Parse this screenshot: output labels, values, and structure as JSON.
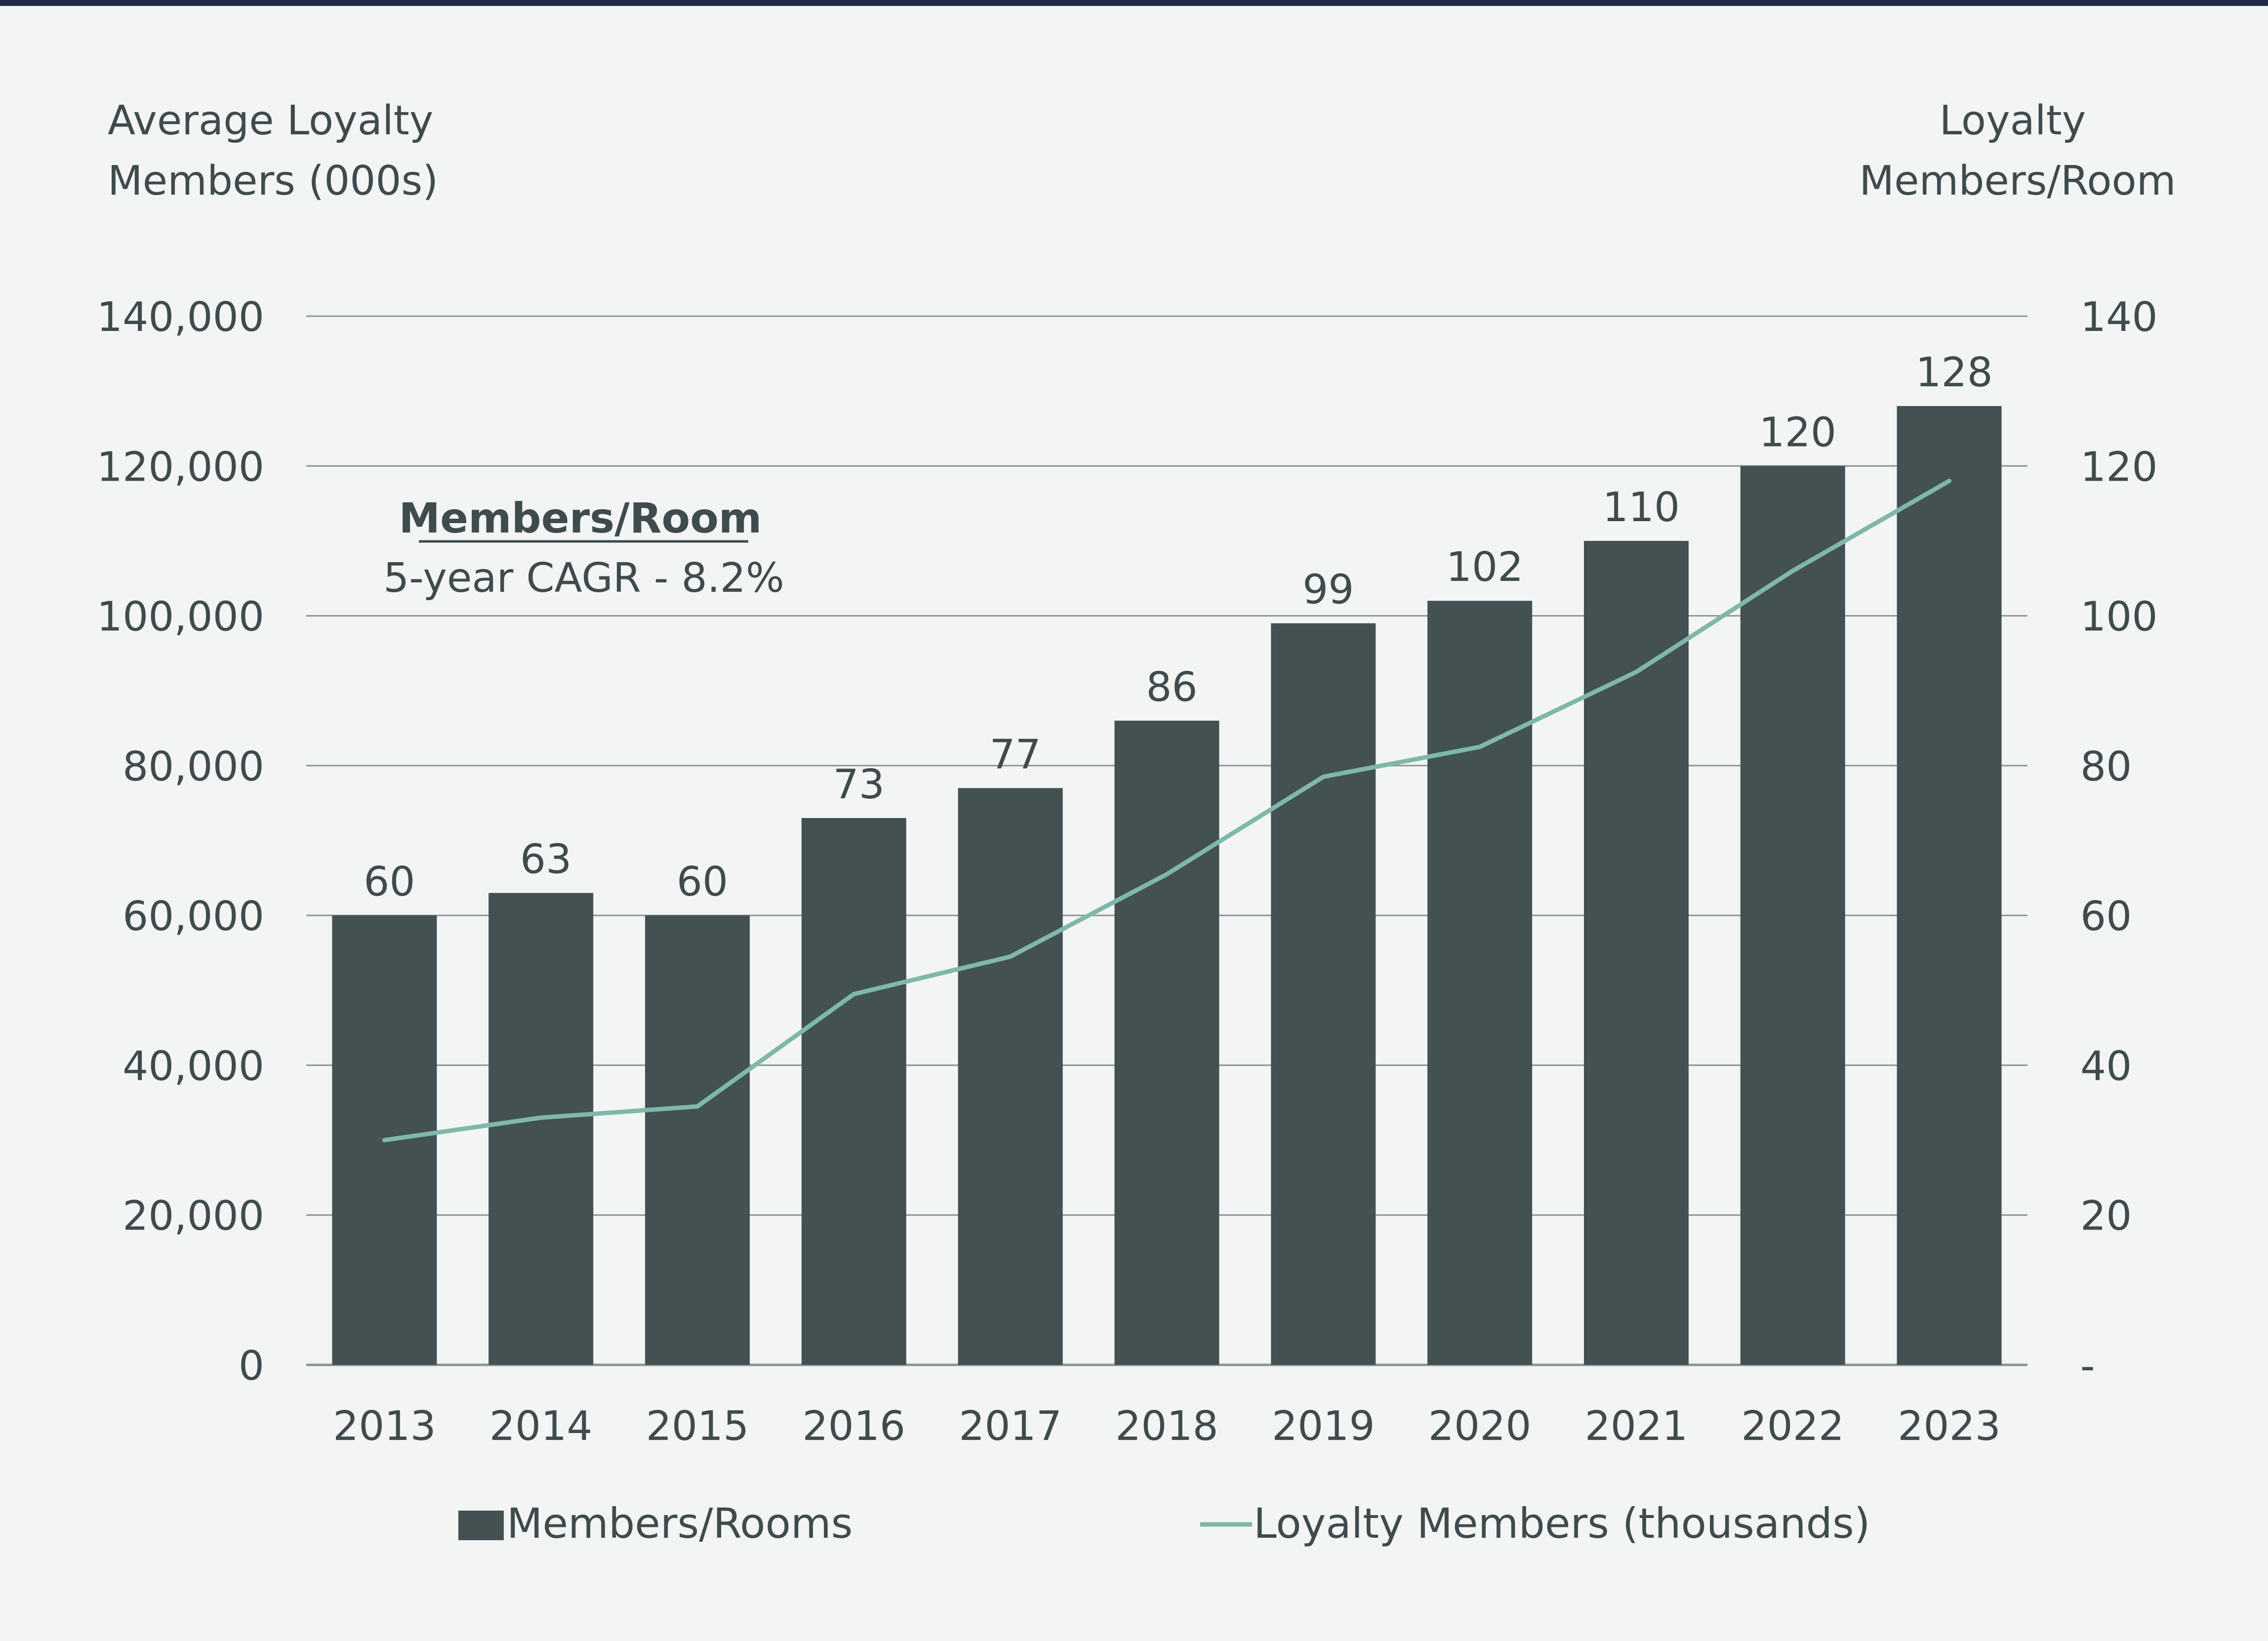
{
  "chart_data": {
    "type": "bar",
    "categories": [
      "2013",
      "2014",
      "2015",
      "2016",
      "2017",
      "2018",
      "2019",
      "2020",
      "2021",
      "2022",
      "2023"
    ],
    "series": [
      {
        "name": "Members/Rooms",
        "type": "bar",
        "axis": "right",
        "values": [
          60,
          63,
          60,
          73,
          77,
          86,
          99,
          102,
          110,
          120,
          128
        ],
        "color": "#435153"
      },
      {
        "name": "Loyalty Members (thousands)",
        "type": "line",
        "axis": "left",
        "values": [
          30000,
          33000,
          34500,
          49500,
          54500,
          65500,
          78500,
          82500,
          92500,
          106000,
          118000
        ],
        "color": "#7fb8a8"
      }
    ],
    "data_labels": [
      "60",
      "63",
      "60",
      "73",
      "77",
      "86",
      "99",
      "102",
      "110",
      "120",
      "128"
    ],
    "left_axis": {
      "title_lines": [
        "Average Loyalty",
        "Members (000s)"
      ],
      "ylim": [
        0,
        140000
      ],
      "ticks": [
        {
          "value": 0,
          "label": "0"
        },
        {
          "value": 20000,
          "label": "20,000"
        },
        {
          "value": 40000,
          "label": "40,000"
        },
        {
          "value": 60000,
          "label": "60,000"
        },
        {
          "value": 80000,
          "label": "80,000"
        },
        {
          "value": 100000,
          "label": "100,000"
        },
        {
          "value": 120000,
          "label": "120,000"
        },
        {
          "value": 140000,
          "label": "140,000"
        }
      ]
    },
    "right_axis": {
      "title_lines": [
        "Loyalty",
        "Members/Room"
      ],
      "ylim": [
        0,
        140
      ],
      "ticks": [
        {
          "value": 0,
          "label": "-"
        },
        {
          "value": 20,
          "label": "20"
        },
        {
          "value": 40,
          "label": "40"
        },
        {
          "value": 60,
          "label": "60"
        },
        {
          "value": 80,
          "label": "80"
        },
        {
          "value": 100,
          "label": "100"
        },
        {
          "value": 120,
          "label": "120"
        },
        {
          "value": 140,
          "label": "140"
        }
      ]
    },
    "annotation": {
      "title": "Members/Room",
      "subtitle": "5-year CAGR - 8.2%"
    },
    "grid": true,
    "legend": {
      "position": "bottom",
      "items": [
        {
          "label": "Members/Rooms",
          "kind": "bar",
          "color": "#435153"
        },
        {
          "label": "Loyalty Members (thousands)",
          "kind": "line",
          "color": "#7fb8a8"
        }
      ]
    },
    "colors": {
      "background": "#f3f5f4",
      "top_rule": "#1f2a4a",
      "gridline": "#8c9496",
      "text": "#3f4b4d"
    }
  }
}
